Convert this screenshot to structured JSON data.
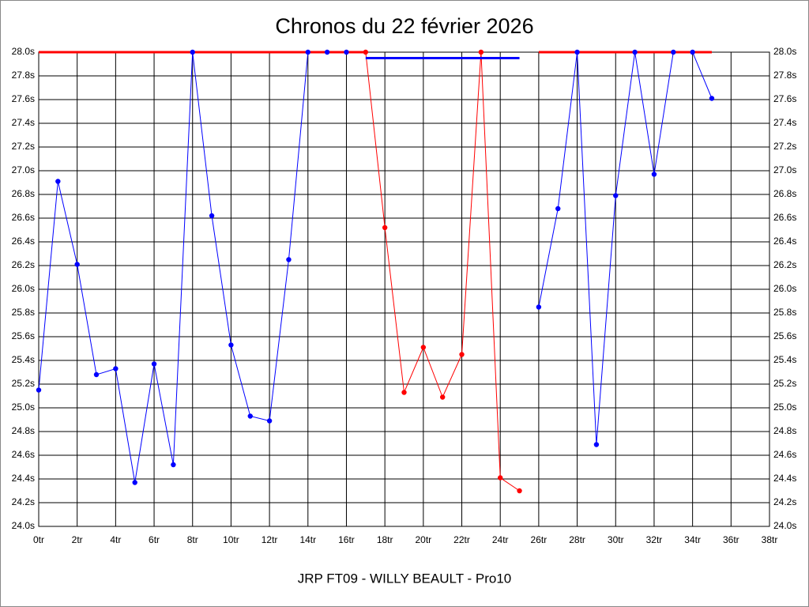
{
  "chart_data": {
    "type": "line",
    "title": "Chronos du 22 février 2026",
    "subtitle": "JRP FT09 - WILLY BEAULT - Pro10",
    "x": [
      0,
      1,
      2,
      3,
      4,
      5,
      6,
      7,
      8,
      9,
      10,
      11,
      12,
      13,
      14,
      15,
      16,
      17,
      18,
      19,
      20,
      21,
      22,
      23,
      24,
      25,
      26,
      27,
      28,
      29,
      30,
      31,
      32,
      33,
      34,
      35
    ],
    "series": [
      {
        "color": "#0000ff",
        "values": [
          25.15,
          26.91,
          26.21,
          25.28,
          25.33,
          24.37,
          25.37,
          24.52,
          28.0,
          26.62,
          25.53,
          24.93,
          24.89,
          26.25,
          28.0,
          28.0,
          28.0,
          null,
          null,
          null,
          null,
          null,
          null,
          null,
          null,
          null,
          25.85,
          26.68,
          28.0,
          24.69,
          26.79,
          28.0,
          26.97,
          28.0,
          28.0,
          27.61
        ]
      },
      {
        "color": "#ff0000",
        "values": [
          null,
          null,
          null,
          null,
          null,
          null,
          null,
          null,
          null,
          null,
          null,
          null,
          null,
          null,
          null,
          null,
          null,
          28.0,
          26.52,
          25.13,
          25.51,
          25.09,
          25.45,
          28.0,
          24.41,
          24.3,
          null,
          null,
          null,
          null,
          null,
          null,
          null,
          null,
          null,
          null
        ]
      }
    ],
    "reference_lines": [
      {
        "color": "#ff0000",
        "value": 28.0,
        "x": [
          0,
          17
        ]
      },
      {
        "color": "#0000ff",
        "value": 27.95,
        "x": [
          17,
          25
        ]
      },
      {
        "color": "#ff0000",
        "value": 28.0,
        "x": [
          26,
          35
        ]
      }
    ],
    "xlim": [
      0,
      38
    ],
    "ylim": [
      24,
      28
    ],
    "grid": true,
    "xticks": [
      {
        "value": 0,
        "label": "0tr"
      },
      {
        "value": 2,
        "label": "2tr"
      },
      {
        "value": 4,
        "label": "4tr"
      },
      {
        "value": 6,
        "label": "6tr"
      },
      {
        "value": 8,
        "label": "8tr"
      },
      {
        "value": 10,
        "label": "10tr"
      },
      {
        "value": 12,
        "label": "12tr"
      },
      {
        "value": 14,
        "label": "14tr"
      },
      {
        "value": 16,
        "label": "16tr"
      },
      {
        "value": 18,
        "label": "18tr"
      },
      {
        "value": 20,
        "label": "20tr"
      },
      {
        "value": 22,
        "label": "22tr"
      },
      {
        "value": 24,
        "label": "24tr"
      },
      {
        "value": 26,
        "label": "26tr"
      },
      {
        "value": 28,
        "label": "28tr"
      },
      {
        "value": 30,
        "label": "30tr"
      },
      {
        "value": 32,
        "label": "32tr"
      },
      {
        "value": 34,
        "label": "34tr"
      },
      {
        "value": 36,
        "label": "36tr"
      },
      {
        "value": 38,
        "label": "38tr"
      }
    ],
    "yticks": [
      {
        "value": 24.0,
        "label": "24.0s"
      },
      {
        "value": 24.2,
        "label": "24.2s"
      },
      {
        "value": 24.4,
        "label": "24.4s"
      },
      {
        "value": 24.6,
        "label": "24.6s"
      },
      {
        "value": 24.8,
        "label": "24.8s"
      },
      {
        "value": 25.0,
        "label": "25.0s"
      },
      {
        "value": 25.2,
        "label": "25.2s"
      },
      {
        "value": 25.4,
        "label": "25.4s"
      },
      {
        "value": 25.6,
        "label": "25.6s"
      },
      {
        "value": 25.8,
        "label": "25.8s"
      },
      {
        "value": 26.0,
        "label": "26.0s"
      },
      {
        "value": 26.2,
        "label": "26.2s"
      },
      {
        "value": 26.4,
        "label": "26.4s"
      },
      {
        "value": 26.6,
        "label": "26.6s"
      },
      {
        "value": 26.8,
        "label": "26.8s"
      },
      {
        "value": 27.0,
        "label": "27.0s"
      },
      {
        "value": 27.2,
        "label": "27.2s"
      },
      {
        "value": 27.4,
        "label": "27.4s"
      },
      {
        "value": 27.6,
        "label": "27.6s"
      },
      {
        "value": 27.8,
        "label": "27.8s"
      },
      {
        "value": 28.0,
        "label": "28.0s"
      }
    ]
  }
}
